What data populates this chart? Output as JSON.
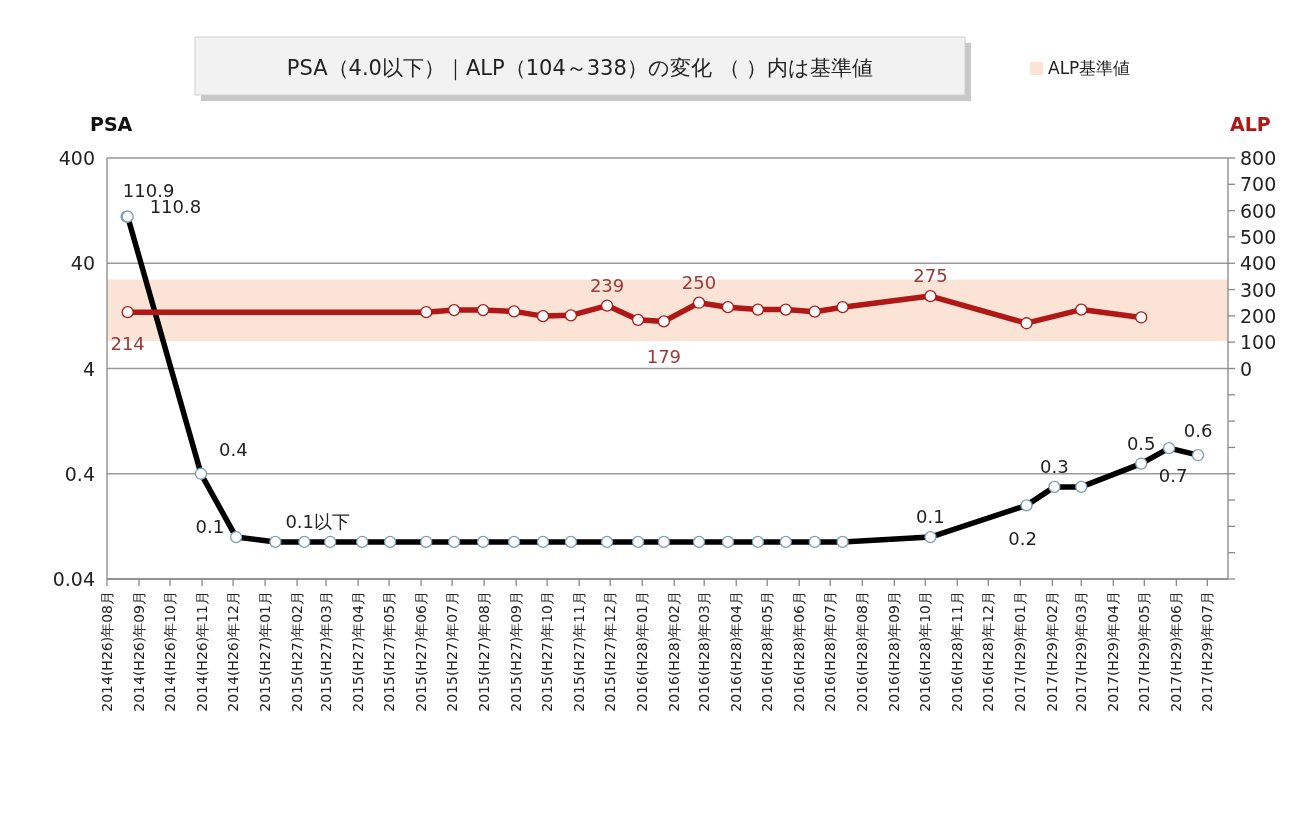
{
  "chart_data": {
    "type": "line",
    "title": "PSA（4.0以下）｜ALP（104～338）の変化 （ ）内は基準値",
    "ylabel": "PSA",
    "y2label": "ALP",
    "xlim": [
      "2014-08-01",
      "2017-07-21"
    ],
    "xticks": [
      {
        "value": "2014-08-01",
        "label": "2014(H26)年08月"
      },
      {
        "value": "2014-09-01",
        "label": "2014(H26)年09月"
      },
      {
        "value": "2014-10-01",
        "label": "2014(H26)年10月"
      },
      {
        "value": "2014-11-01",
        "label": "2014(H26)年11月"
      },
      {
        "value": "2014-12-01",
        "label": "2014(H26)年12月"
      },
      {
        "value": "2015-01-01",
        "label": "2015(H27)年01月"
      },
      {
        "value": "2015-02-01",
        "label": "2015(H27)年02月"
      },
      {
        "value": "2015-03-01",
        "label": "2015(H27)年03月"
      },
      {
        "value": "2015-04-01",
        "label": "2015(H27)年04月"
      },
      {
        "value": "2015-05-01",
        "label": "2015(H27)年05月"
      },
      {
        "value": "2015-06-01",
        "label": "2015(H27)年06月"
      },
      {
        "value": "2015-07-01",
        "label": "2015(H27)年07月"
      },
      {
        "value": "2015-08-01",
        "label": "2015(H27)年08月"
      },
      {
        "value": "2015-09-01",
        "label": "2015(H27)年09月"
      },
      {
        "value": "2015-10-01",
        "label": "2015(H27)年10月"
      },
      {
        "value": "2015-11-01",
        "label": "2015(H27)年11月"
      },
      {
        "value": "2015-12-01",
        "label": "2015(H27)年12月"
      },
      {
        "value": "2016-01-01",
        "label": "2016(H28)年01月"
      },
      {
        "value": "2016-02-01",
        "label": "2016(H28)年02月"
      },
      {
        "value": "2016-03-01",
        "label": "2016(H28)年03月"
      },
      {
        "value": "2016-04-01",
        "label": "2016(H28)年04月"
      },
      {
        "value": "2016-05-01",
        "label": "2016(H28)年05月"
      },
      {
        "value": "2016-06-01",
        "label": "2016(H28)年06月"
      },
      {
        "value": "2016-07-01",
        "label": "2016(H28)年07月"
      },
      {
        "value": "2016-08-01",
        "label": "2016(H28)年08月"
      },
      {
        "value": "2016-09-01",
        "label": "2016(H28)年09月"
      },
      {
        "value": "2016-10-01",
        "label": "2016(H28)年10月"
      },
      {
        "value": "2016-11-01",
        "label": "2016(H28)年11月"
      },
      {
        "value": "2016-12-01",
        "label": "2016(H28)年12月"
      },
      {
        "value": "2017-01-01",
        "label": "2017(H29)年01月"
      },
      {
        "value": "2017-02-01",
        "label": "2017(H29)年02月"
      },
      {
        "value": "2017-03-01",
        "label": "2017(H29)年03月"
      },
      {
        "value": "2017-04-01",
        "label": "2017(H29)年04月"
      },
      {
        "value": "2017-05-01",
        "label": "2017(H29)年05月"
      },
      {
        "value": "2017-06-01",
        "label": "2017(H29)年06月"
      },
      {
        "value": "2017-07-01",
        "label": "2017(H29)年07月"
      }
    ],
    "log": "y",
    "ylim": [
      0.04,
      400
    ],
    "yticks": [
      0.04,
      0.4,
      4,
      40,
      400
    ],
    "y2lim": [
      -800,
      800
    ],
    "y2ticks": [
      {
        "value": -800,
        "label": null
      },
      {
        "value": -700,
        "label": null
      },
      {
        "value": -600,
        "label": null
      },
      {
        "value": -500,
        "label": null
      },
      {
        "value": -400,
        "label": null
      },
      {
        "value": -300,
        "label": null
      },
      {
        "value": -200,
        "label": null
      },
      {
        "value": -100,
        "label": null
      },
      0,
      100,
      200,
      300,
      400,
      500,
      600,
      700,
      800
    ],
    "grid": "y",
    "marker": "circle",
    "line_style": "solid",
    "legend": "top right",
    "bands": [
      {
        "axis": "y2",
        "from": 104,
        "to": 338,
        "label": "ALP基準値",
        "color": "#fbe3d6"
      }
    ],
    "series": [
      {
        "color": "#000000",
        "x": [
          "2014-08-20",
          "2014-08-21",
          "2014-10-31",
          "2014-12-04",
          "2015-01-11",
          "2015-02-08",
          "2015-03-05",
          "2015-04-05",
          "2015-05-02",
          "2015-06-06",
          "2015-07-03",
          "2015-07-31",
          "2015-08-30",
          "2015-09-27",
          "2015-10-24",
          "2015-11-28",
          "2015-12-28",
          "2016-01-22",
          "2016-02-25",
          "2016-03-24",
          "2016-04-22",
          "2016-05-19",
          "2016-06-16",
          "2016-07-13",
          "2016-10-06",
          "2017-01-07",
          "2017-02-03",
          "2017-03-01",
          "2017-04-28",
          "2017-05-25",
          "2017-06-22"
        ],
        "values": [
          110.9,
          110.8,
          0.4,
          0.1,
          0.09,
          0.09,
          0.09,
          0.09,
          0.09,
          0.09,
          0.09,
          0.09,
          0.09,
          0.09,
          0.09,
          0.09,
          0.09,
          0.09,
          0.09,
          0.09,
          0.09,
          0.09,
          0.09,
          0.09,
          0.1,
          0.2,
          0.3,
          0.3,
          0.5,
          0.7,
          0.6
        ],
        "value_labels": [
          "110.9",
          "110.8",
          "0.4",
          "0.1",
          "0.1以下",
          null,
          null,
          null,
          null,
          null,
          null,
          null,
          null,
          null,
          null,
          null,
          null,
          null,
          null,
          null,
          null,
          null,
          null,
          null,
          "0.1",
          "0.2",
          "0.3",
          null,
          "0.5",
          "0.7",
          "0.6"
        ]
      },
      {
        "color": "#b01818",
        "axis": "y2",
        "x": [
          "2014-08-21",
          "2015-06-06",
          "2015-07-03",
          "2015-07-31",
          "2015-08-30",
          "2015-09-27",
          "2015-10-24",
          "2015-11-28",
          "2015-12-28",
          "2016-01-22",
          "2016-02-25",
          "2016-03-24",
          "2016-04-22",
          "2016-05-19",
          "2016-06-16",
          "2016-07-13",
          "2016-10-06",
          "2017-01-07",
          "2017-03-01",
          "2017-04-28"
        ],
        "values": [
          214,
          214,
          222,
          222,
          217,
          199,
          202,
          239,
          185,
          179,
          250,
          233,
          224,
          224,
          216,
          233,
          275,
          172,
          224,
          194
        ],
        "value_labels": [
          "214",
          null,
          null,
          null,
          null,
          null,
          null,
          "239",
          null,
          "179",
          "250",
          null,
          null,
          null,
          null,
          null,
          "275",
          null,
          null,
          null
        ]
      }
    ]
  }
}
